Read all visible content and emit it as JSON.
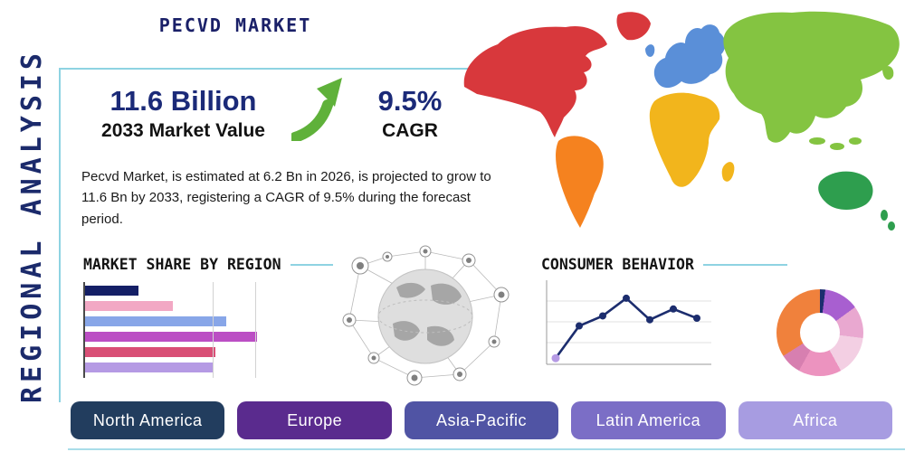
{
  "page": {
    "title": "PECVD MARKET",
    "side_label": "REGIONAL ANALYSIS",
    "accent_color": "#8ed3e2",
    "navy_color": "#1b2a6b"
  },
  "stats": {
    "market_value": "11.6 Billion",
    "market_value_label": "2033 Market Value",
    "growth_arrow_color": "#5fb13a",
    "cagr_value": "9.5%",
    "cagr_label": "CAGR",
    "description": "Pecvd Market, is estimated at 6.2 Bn in 2026, is projected to grow to 11.6 Bn by 2033, registering a CAGR of 9.5% during the forecast period."
  },
  "regions": [
    {
      "label": "North America",
      "color": "#223d5e"
    },
    {
      "label": "Europe",
      "color": "#5a2b8e"
    },
    {
      "label": "Asia-Pacific",
      "color": "#5054a4"
    },
    {
      "label": "Latin America",
      "color": "#7b6ec6"
    },
    {
      "label": "Africa",
      "color": "#a79ce1"
    }
  ],
  "chart_data": [
    {
      "type": "bar",
      "title": "MARKET SHARE BY REGION",
      "orientation": "horizontal",
      "values": [
        31,
        51,
        82,
        100,
        76,
        74
      ],
      "colors": [
        "#141f66",
        "#f2a8c4",
        "#88a6e8",
        "#bb4ec4",
        "#d94f76",
        "#b59ae4"
      ],
      "xlim": [
        0,
        100
      ],
      "grid": true,
      "legend": false
    },
    {
      "type": "line",
      "title": "CONSUMER BEHAVIOR",
      "x": [
        1,
        2,
        3,
        4,
        5,
        6,
        7
      ],
      "values": [
        8,
        50,
        63,
        86,
        58,
        72,
        60
      ],
      "ylim": [
        0,
        100
      ],
      "line_color": "#1c2d6e",
      "point_color": "#1c2d6e",
      "first_point_color": "#b59ae4",
      "grid": true,
      "legend": false
    },
    {
      "type": "pie",
      "donut": true,
      "slices": [
        {
          "color": "#1c2d6e",
          "value": 2
        },
        {
          "color": "#a85fd0",
          "value": 13
        },
        {
          "color": "#e9a8d0",
          "value": 12
        },
        {
          "color": "#f3cfe3",
          "value": 15
        },
        {
          "color": "#ec93bf",
          "value": 16
        },
        {
          "color": "#d77fb0",
          "value": 8
        },
        {
          "color": "#f0813c",
          "value": 34
        }
      ],
      "legend": false
    }
  ],
  "map": {
    "continents": {
      "north_america": {
        "color": "#d8383c"
      },
      "greenland": {
        "color": "#d8383c"
      },
      "south_america": {
        "color": "#f5821f"
      },
      "europe": {
        "color": "#5a8fd8"
      },
      "united_kingdom": {
        "color": "#5a8fd8"
      },
      "africa": {
        "color": "#f2b51c"
      },
      "madagascar": {
        "color": "#f2b51c"
      },
      "asia": {
        "color": "#84c441"
      },
      "japan": {
        "color": "#84c441"
      },
      "indonesia": {
        "color": "#84c441"
      },
      "australia": {
        "color": "#2e9e4e"
      },
      "new_zealand": {
        "color": "#2e9e4e"
      }
    }
  }
}
